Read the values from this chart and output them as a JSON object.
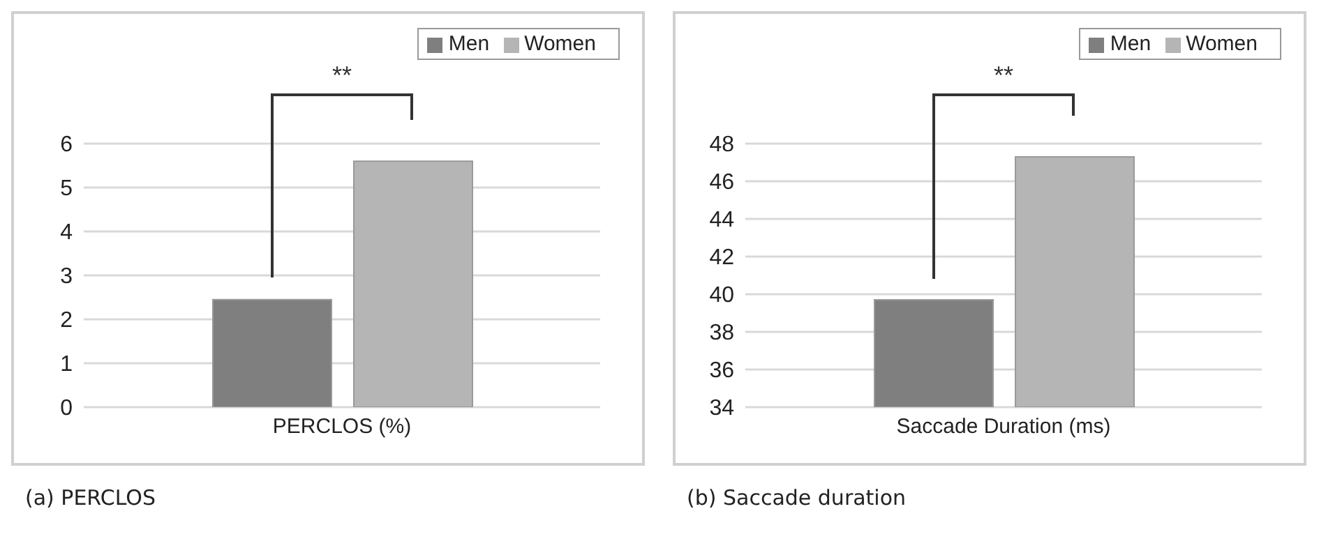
{
  "chart_data": [
    {
      "type": "bar",
      "categories": [
        "PERCLOS (%)"
      ],
      "series": [
        {
          "name": "Men",
          "color": "#7f7f7f",
          "values": [
            2.45
          ]
        },
        {
          "name": "Women",
          "color": "#b5b5b5",
          "values": [
            5.6
          ]
        }
      ],
      "ylim": [
        0,
        6
      ],
      "yticks": [
        0,
        1,
        2,
        3,
        4,
        5,
        6
      ],
      "grid": "y",
      "legend": "top right",
      "annotations": [
        "**",
        "(a) PERCLOS"
      ]
    },
    {
      "type": "bar",
      "categories": [
        "Saccade Duration (ms)"
      ],
      "series": [
        {
          "name": "Men",
          "color": "#7f7f7f",
          "values": [
            39.7
          ]
        },
        {
          "name": "Women",
          "color": "#b5b5b5",
          "values": [
            47.3
          ]
        }
      ],
      "ylim": [
        34,
        48
      ],
      "yticks": [
        34,
        36,
        38,
        40,
        42,
        44,
        46,
        48
      ],
      "grid": "y",
      "legend": "top right",
      "annotations": [
        "**",
        "(b) Saccade duration"
      ]
    }
  ]
}
